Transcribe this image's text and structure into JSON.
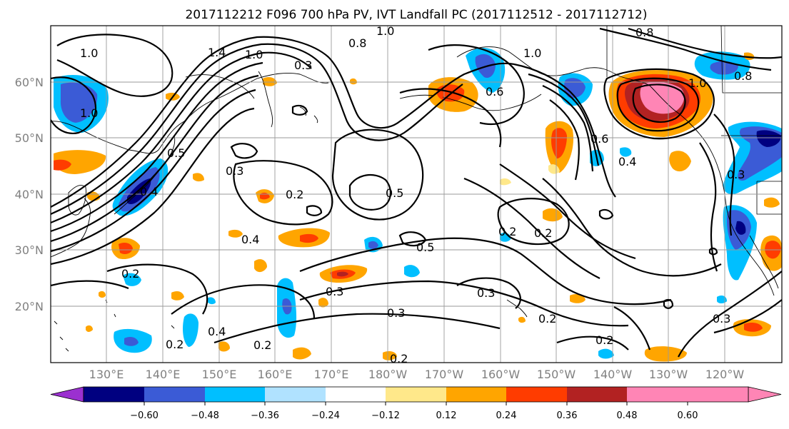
{
  "title": "2017112212 F096 700 hPa PV, IVT Landfall PC (2017112512 - 2017112712)",
  "map": {
    "lat_labels": [
      "60°N",
      "50°N",
      "40°N",
      "30°N",
      "20°N"
    ],
    "lon_labels": [
      "130°E",
      "140°E",
      "150°E",
      "160°E",
      "170°E",
      "180°W",
      "170°W",
      "160°W",
      "150°W",
      "140°W",
      "130°W",
      "120°W"
    ],
    "fill_colors": {
      "purple": "#9b30d0",
      "navy": "#000080",
      "blue": "#3b5bd6",
      "sky": "#00bfff",
      "light_blue": "#b0e2ff",
      "yellow": "#ffe88a",
      "orange": "#ffa500",
      "red_orange": "#ff3c00",
      "dark_red": "#b22222",
      "pink": "#ff85b5"
    },
    "contour_labels": [
      "1.0",
      "1.4",
      "1.0",
      "0.8",
      "1.0",
      "0.8",
      "0.3",
      "1.0",
      "0.6",
      "0.5",
      "0.3",
      "0.2",
      "0.5",
      "0.4",
      "0.5",
      "0.2",
      "0.3",
      "0.4",
      "0.2",
      "0.3",
      "0.3",
      "0.2",
      "0.2",
      "0.4",
      "0.2",
      "0.3",
      "0.6",
      "0.4",
      "0.2",
      "1.0",
      "1.0",
      "0.8",
      "0.3",
      "0.2",
      "0.2"
    ]
  },
  "colorbar": {
    "tick_labels": [
      "−0.60",
      "−0.48",
      "−0.36",
      "−0.24",
      "−0.12",
      "0.12",
      "0.24",
      "0.36",
      "0.48",
      "0.60"
    ],
    "colors": [
      "#9b30d0",
      "#000080",
      "#3b5bd6",
      "#00bfff",
      "#b0e2ff",
      "#ffffff",
      "#ffe88a",
      "#ffa500",
      "#ff3c00",
      "#b22222",
      "#ff85b5"
    ]
  }
}
